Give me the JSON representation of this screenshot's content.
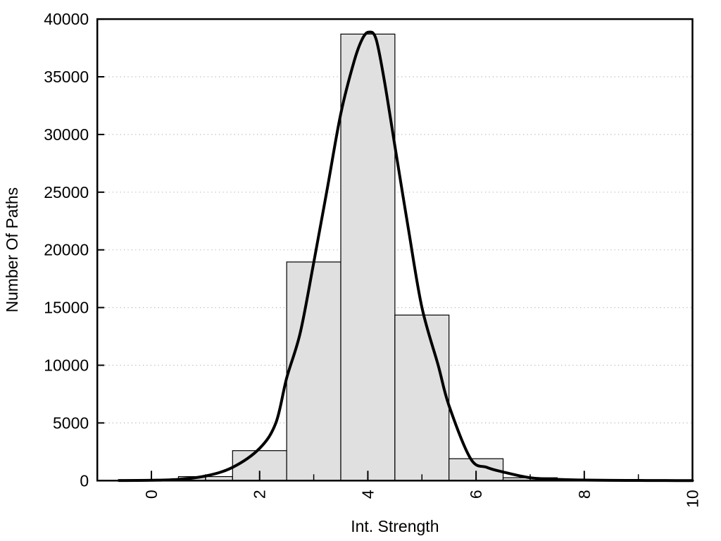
{
  "chart_data": {
    "type": "bar",
    "subtype": "histogram_with_fit_curve",
    "title": "",
    "xlabel": "Int. Strength",
    "ylabel": "Number Of Paths",
    "xlim": [
      -1,
      10
    ],
    "ylim": [
      0,
      40000
    ],
    "x_major_ticks": [
      0,
      2,
      4,
      6,
      8,
      10
    ],
    "x_minor_ticks": [
      1,
      3,
      5,
      7,
      9
    ],
    "y_ticks": [
      0,
      5000,
      10000,
      15000,
      20000,
      25000,
      30000,
      35000,
      40000
    ],
    "grid": {
      "horizontal": true,
      "vertical": false,
      "style": "dotted",
      "color": "#b5b5b5"
    },
    "colors": {
      "bar_fill": "#e0e0e0",
      "bar_edge": "#000000",
      "curve": "#000000",
      "frame": "#000000",
      "background": "#ffffff"
    },
    "histogram": {
      "bin_width": 1,
      "bin_centers": [
        1,
        2,
        3,
        4,
        5,
        6,
        7
      ],
      "counts": [
        350,
        2600,
        18950,
        38700,
        14350,
        1900,
        250
      ]
    },
    "fit_curve": {
      "peak": {
        "x": 4.0,
        "y": 38870
      },
      "points": [
        [
          -0.6,
          10
        ],
        [
          0,
          30
        ],
        [
          0.5,
          110
        ],
        [
          1,
          400
        ],
        [
          1.5,
          1150
        ],
        [
          2,
          2800
        ],
        [
          2.3,
          5000
        ],
        [
          2.5,
          8900
        ],
        [
          2.75,
          12800
        ],
        [
          3,
          18900
        ],
        [
          3.25,
          25300
        ],
        [
          3.5,
          31800
        ],
        [
          3.75,
          36400
        ],
        [
          3.9,
          38300
        ],
        [
          4.02,
          38870
        ],
        [
          4.15,
          38300
        ],
        [
          4.3,
          34800
        ],
        [
          4.5,
          29000
        ],
        [
          4.75,
          21800
        ],
        [
          5,
          15000
        ],
        [
          5.3,
          10000
        ],
        [
          5.5,
          6500
        ],
        [
          5.9,
          1900
        ],
        [
          6.2,
          1150
        ],
        [
          6.5,
          750
        ],
        [
          7,
          250
        ],
        [
          7.5,
          110
        ],
        [
          8,
          50
        ],
        [
          8.5,
          25
        ],
        [
          9,
          15
        ],
        [
          9.5,
          8
        ],
        [
          10,
          5
        ]
      ]
    }
  }
}
